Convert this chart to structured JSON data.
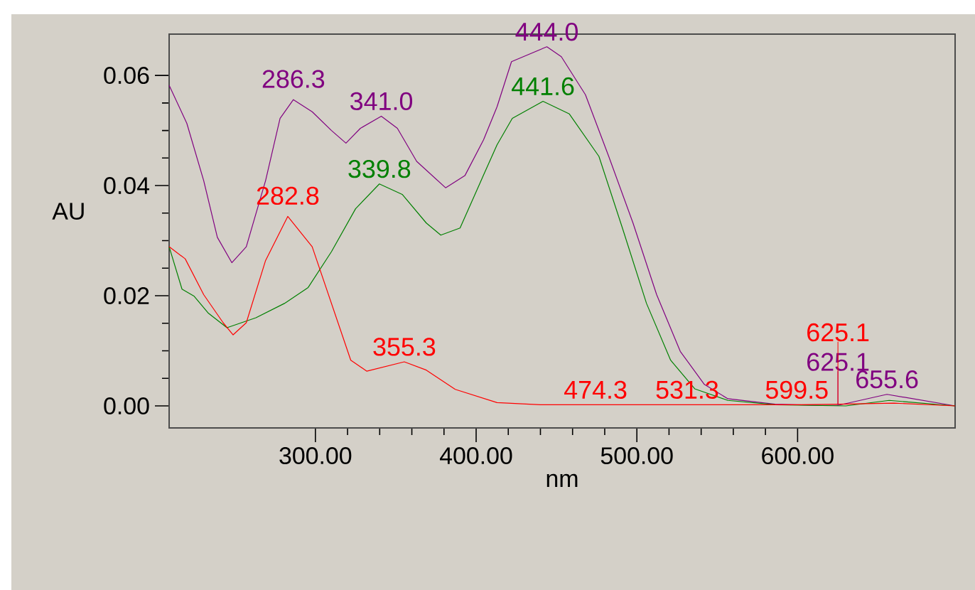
{
  "chart_data": {
    "type": "line",
    "xlabel": "nm",
    "ylabel": "AU",
    "xlim": [
      209,
      698
    ],
    "ylim": [
      -0.004,
      0.0675
    ],
    "xticks": [
      {
        "value": 300,
        "label": "300.00"
      },
      {
        "value": 400,
        "label": "400.00"
      },
      {
        "value": 500,
        "label": "500.00"
      },
      {
        "value": 600,
        "label": "600.00"
      }
    ],
    "yticks": [
      {
        "value": 0,
        "label": "0.00"
      },
      {
        "value": 0.02,
        "label": "0.02"
      },
      {
        "value": 0.04,
        "label": "0.04"
      },
      {
        "value": 0.06,
        "label": "0.06"
      }
    ],
    "series": [
      {
        "color": "#800080",
        "x": [
          209,
          220,
          230.5,
          239,
          248,
          257,
          269,
          278,
          286.3,
          298,
          310,
          319,
          328,
          341,
          351,
          363,
          381,
          393,
          404.6,
          413,
          422,
          444,
          453,
          468,
          482.5,
          497.6,
          512.3,
          527,
          542,
          556.6,
          586,
          615,
          625.1,
          655.6,
          698
        ],
        "values": [
          0.0582,
          0.0513,
          0.0409,
          0.0306,
          0.026,
          0.0289,
          0.0409,
          0.0522,
          0.0556,
          0.0534,
          0.05,
          0.0477,
          0.0504,
          0.0526,
          0.0504,
          0.0444,
          0.0396,
          0.0418,
          0.0483,
          0.0543,
          0.0625,
          0.0652,
          0.0634,
          0.0565,
          0.0453,
          0.0332,
          0.0202,
          0.0099,
          0.0039,
          0.0013,
          0.0003,
          0.0001,
          0.0001,
          0.0021,
          0.0
        ]
      },
      {
        "color": "#008000",
        "x": [
          209,
          217,
          224.6,
          233.5,
          245,
          263,
          280.7,
          295.5,
          310,
          325,
          339.8,
          354,
          369,
          378,
          390,
          404.6,
          413,
          422.5,
          441.6,
          458,
          476.4,
          491,
          506,
          521,
          536,
          556.6,
          586,
          630,
          657,
          698
        ],
        "values": [
          0.0289,
          0.0212,
          0.0199,
          0.0168,
          0.0142,
          0.016,
          0.0186,
          0.0215,
          0.028,
          0.0358,
          0.0403,
          0.0384,
          0.0332,
          0.031,
          0.0323,
          0.0419,
          0.0474,
          0.0522,
          0.0553,
          0.053,
          0.0453,
          0.0323,
          0.0186,
          0.0083,
          0.0031,
          0.001,
          0.0002,
          0.0,
          0.001,
          0.0
        ]
      },
      {
        "color": "#ff0000",
        "x": [
          209,
          219,
          230.5,
          242.6,
          248.8,
          257,
          269,
          282.8,
          298,
          310,
          322,
          332,
          355.3,
          369,
          387,
          413,
          440,
          474.3,
          531.3,
          570,
          599.5,
          625.1,
          660,
          698
        ],
        "values": [
          0.0289,
          0.0267,
          0.0202,
          0.0151,
          0.0129,
          0.0151,
          0.0264,
          0.0344,
          0.0289,
          0.0186,
          0.0083,
          0.0063,
          0.008,
          0.0065,
          0.003,
          0.0006,
          0.0002,
          0.0002,
          0.0002,
          0.0002,
          0.0002,
          0.0003,
          0.0005,
          0.0
        ]
      }
    ],
    "annotations": [
      {
        "text": "286.3",
        "x": 286.3,
        "y": 0.0556
      },
      {
        "text": "341.0",
        "x": 341,
        "y": 0.0526
      },
      {
        "text": "444.0",
        "x": 444,
        "y": 0.0652
      },
      {
        "text": "625.1",
        "x": 625.1,
        "y": 0.0001
      },
      {
        "text": "655.6",
        "x": 655.6,
        "y": 0.0021
      },
      {
        "text": "339.8",
        "x": 339.8,
        "y": 0.0403
      },
      {
        "text": "441.6",
        "x": 441.6,
        "y": 0.0553
      },
      {
        "text": "282.8",
        "x": 282.8,
        "y": 0.0344
      },
      {
        "text": "355.3",
        "x": 355.3,
        "y": 0.008
      },
      {
        "text": "474.3",
        "x": 474.3,
        "y": 0.0002
      },
      {
        "text": "531.3",
        "x": 531.3,
        "y": 0.0002
      },
      {
        "text": "599.5",
        "x": 599.5,
        "y": 0.0002
      },
      {
        "text": "625.1",
        "x": 625.1,
        "y": 0.0003
      }
    ]
  }
}
